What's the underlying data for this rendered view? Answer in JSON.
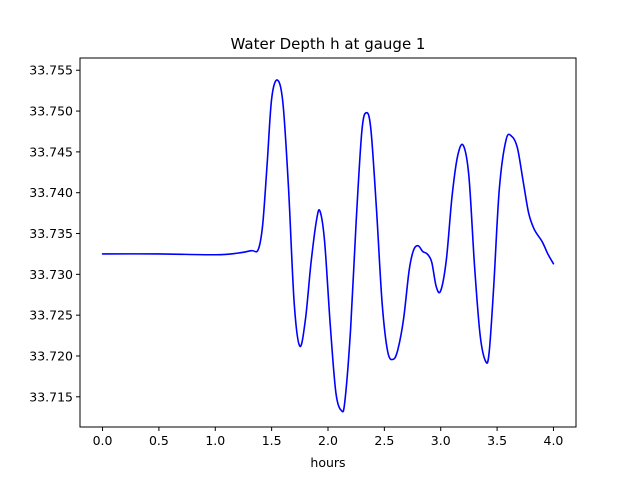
{
  "chart_data": {
    "type": "line",
    "title": "Water Depth h at gauge 1",
    "xlabel": "hours",
    "ylabel": "",
    "xlim": [
      -0.2,
      4.2
    ],
    "ylim": [
      33.7113,
      33.7565
    ],
    "xticks": [
      0.0,
      0.5,
      1.0,
      1.5,
      2.0,
      2.5,
      3.0,
      3.5,
      4.0
    ],
    "xtick_labels": [
      "0.0",
      "0.5",
      "1.0",
      "1.5",
      "2.0",
      "2.5",
      "3.0",
      "3.5",
      "4.0"
    ],
    "yticks": [
      33.715,
      33.72,
      33.725,
      33.73,
      33.735,
      33.74,
      33.745,
      33.75,
      33.755
    ],
    "ytick_labels": [
      "33.715",
      "33.720",
      "33.725",
      "33.730",
      "33.735",
      "33.740",
      "33.745",
      "33.750",
      "33.755"
    ],
    "grid": false,
    "series": [
      {
        "color": "#0000ff",
        "x": [
          0.0,
          0.5,
          1.0,
          1.2,
          1.32,
          1.38,
          1.42,
          1.46,
          1.5,
          1.55,
          1.6,
          1.65,
          1.7,
          1.75,
          1.8,
          1.85,
          1.9,
          1.93,
          1.97,
          2.02,
          2.07,
          2.12,
          2.15,
          2.2,
          2.25,
          2.3,
          2.34,
          2.38,
          2.43,
          2.48,
          2.53,
          2.58,
          2.62,
          2.67,
          2.72,
          2.76,
          2.8,
          2.84,
          2.88,
          2.92,
          2.96,
          3.0,
          3.05,
          3.1,
          3.15,
          3.2,
          3.25,
          3.3,
          3.35,
          3.4,
          3.43,
          3.47,
          3.52,
          3.58,
          3.63,
          3.68,
          3.73,
          3.78,
          3.83,
          3.9,
          3.95,
          4.0
        ],
        "values": [
          33.7325,
          33.7325,
          33.7324,
          33.7326,
          33.7329,
          33.733,
          33.736,
          33.7435,
          33.7515,
          33.7538,
          33.751,
          33.7405,
          33.7265,
          33.7212,
          33.7245,
          33.7315,
          33.7368,
          33.7377,
          33.734,
          33.7238,
          33.7155,
          33.7133,
          33.7145,
          33.7232,
          33.7365,
          33.7475,
          33.7498,
          33.7478,
          33.738,
          33.7265,
          33.7205,
          33.7196,
          33.7208,
          33.7245,
          33.7305,
          33.733,
          33.7335,
          33.7328,
          33.7325,
          33.7315,
          33.7285,
          33.728,
          33.7318,
          33.7395,
          33.7445,
          33.7458,
          33.742,
          33.731,
          33.7225,
          33.7193,
          33.7205,
          33.7285,
          33.7405,
          33.7465,
          33.7469,
          33.7455,
          33.7415,
          33.7375,
          33.7355,
          33.734,
          33.7325,
          33.7313
        ]
      }
    ]
  }
}
